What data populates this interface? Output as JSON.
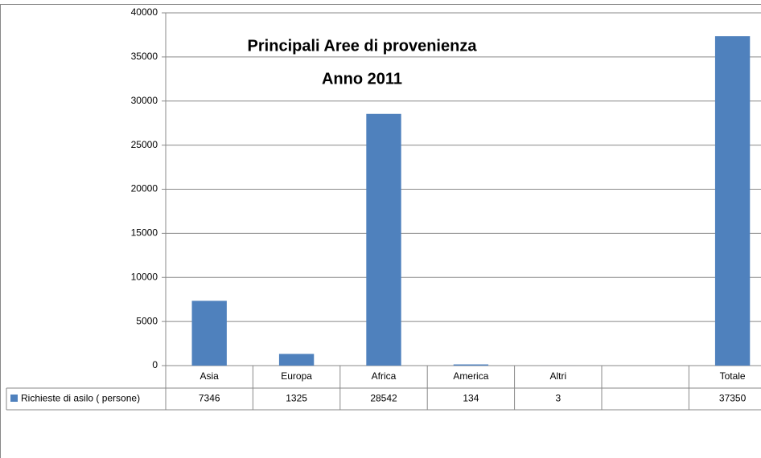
{
  "chart_data": {
    "type": "bar",
    "title": "Principali Aree di provenienza",
    "subtitle": "Anno 2011",
    "categories": [
      "Asia",
      "Europa",
      "Africa",
      "America",
      "Altri",
      null,
      "Totale"
    ],
    "series": [
      {
        "name": "Richieste di asilo ( persone)",
        "color": "#4f81bd",
        "values": [
          7346,
          1325,
          28542,
          134,
          3,
          null,
          37350
        ]
      }
    ],
    "ylim": [
      0,
      40000
    ],
    "yticks": [
      0,
      5000,
      10000,
      15000,
      20000,
      25000,
      30000,
      35000,
      40000
    ],
    "grid": true
  }
}
